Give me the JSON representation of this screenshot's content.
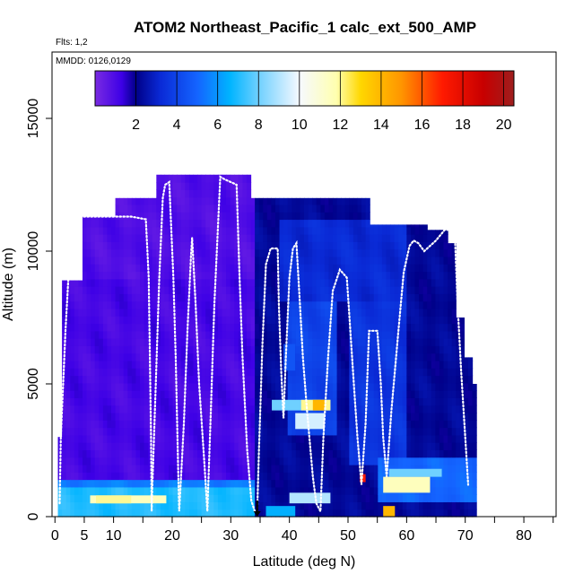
{
  "chart_data": {
    "type": "heatmap",
    "title": "ATOM2 Northeast_Pacific_1 calc_ext_500_AMP",
    "flights_label": "Flts: 1,2",
    "dates_label": "MMDD: 0126,0129",
    "xlabel": "Latitude (deg N)",
    "ylabel": "Altitude (m)",
    "xlim": [
      -0.5,
      85.5
    ],
    "ylim": [
      0,
      17500
    ],
    "x_ticks": [
      0,
      5,
      10,
      20,
      30,
      40,
      50,
      60,
      70,
      80
    ],
    "x_tick_labels": [
      "0",
      "5",
      "10",
      "20",
      "30",
      "40",
      "50",
      "60",
      "70",
      "80"
    ],
    "x_minor_ticks": [
      15,
      25,
      35,
      45,
      55,
      65,
      75,
      85
    ],
    "y_ticks": [
      0,
      5000,
      10000,
      15000
    ],
    "y_tick_labels": [
      "0",
      "5000",
      "10000",
      "15000"
    ],
    "colorbar": {
      "range": [
        0,
        20.5
      ],
      "ticks": [
        2,
        4,
        6,
        8,
        10,
        12,
        14,
        16,
        18,
        20
      ],
      "tick_labels": [
        "2",
        "4",
        "6",
        "8",
        "10",
        "12",
        "14",
        "16",
        "18",
        "20"
      ],
      "stops": [
        {
          "v": 0,
          "color": "#7a2be2"
        },
        {
          "v": 1.3,
          "color": "#3d00e6"
        },
        {
          "v": 2,
          "color": "#000088"
        },
        {
          "v": 3.2,
          "color": "#0a2ad6"
        },
        {
          "v": 5,
          "color": "#1464ff"
        },
        {
          "v": 6.6,
          "color": "#00b4ff"
        },
        {
          "v": 8,
          "color": "#6fd0ff"
        },
        {
          "v": 10,
          "color": "#f6f9ff"
        },
        {
          "v": 11.8,
          "color": "#ffffb0"
        },
        {
          "v": 13,
          "color": "#ffd700"
        },
        {
          "v": 15,
          "color": "#ff9500"
        },
        {
          "v": 17,
          "color": "#ff1a00"
        },
        {
          "v": 19,
          "color": "#c80000"
        },
        {
          "v": 20.5,
          "color": "#9e1e1e"
        }
      ]
    },
    "column_ranges": [
      {
        "lat": [
          0.5,
          1.5
        ],
        "alt": [
          0,
          3000
        ]
      },
      {
        "lat": [
          1.5,
          4.5
        ],
        "alt": [
          0,
          8900
        ]
      },
      {
        "lat": [
          4.5,
          10
        ],
        "alt": [
          0,
          11300
        ]
      },
      {
        "lat": [
          10,
          17.5
        ],
        "alt": [
          0,
          12000
        ]
      },
      {
        "lat": [
          17.5,
          28.5
        ],
        "alt": [
          0,
          12900
        ]
      },
      {
        "lat": [
          28.5,
          33.5
        ],
        "alt": [
          0,
          12900
        ]
      },
      {
        "lat": [
          33.5,
          54
        ],
        "alt": [
          0,
          12000
        ]
      },
      {
        "lat": [
          54,
          63.5
        ],
        "alt": [
          0,
          11000
        ]
      },
      {
        "lat": [
          63.5,
          67
        ],
        "alt": [
          0,
          10800
        ]
      },
      {
        "lat": [
          67,
          68.5
        ],
        "alt": [
          0,
          10300
        ]
      },
      {
        "lat": [
          68.5,
          70
        ],
        "alt": [
          0,
          7500
        ]
      },
      {
        "lat": [
          70,
          71
        ],
        "alt": [
          0,
          6000
        ]
      },
      {
        "lat": [
          71,
          71.7
        ],
        "alt": [
          0,
          5000
        ]
      }
    ],
    "fields": [
      {
        "lat": [
          34,
          71.7
        ],
        "alt": [
          0,
          12000
        ],
        "value": 2.2
      },
      {
        "lat": [
          38,
          60
        ],
        "alt": [
          8000,
          11200
        ],
        "value": 3.2
      },
      {
        "lat": [
          40,
          48
        ],
        "alt": [
          3000,
          8000
        ],
        "value": 4
      },
      {
        "lat": [
          50,
          60
        ],
        "alt": [
          2000,
          8000
        ],
        "value": 3.5
      },
      {
        "lat": [
          55,
          71.7
        ],
        "alt": [
          500,
          2200
        ],
        "value": 5
      },
      {
        "lat": [
          0.5,
          34
        ],
        "alt": [
          0,
          12900
        ],
        "value": 0.9
      },
      {
        "lat": [
          0.5,
          34
        ],
        "alt": [
          1500,
          9000
        ],
        "value": 1.1
      },
      {
        "lat": [
          0.5,
          34
        ],
        "alt": [
          0,
          1000
        ],
        "value": 7
      },
      {
        "lat": [
          0.5,
          34
        ],
        "alt": [
          1000,
          1500
        ],
        "value": 5.5
      }
    ],
    "hotspots": [
      {
        "lat": [
          6,
          19
        ],
        "alt": [
          500,
          800
        ],
        "value": 11.5
      },
      {
        "lat": [
          7,
          13
        ],
        "alt": [
          500,
          800
        ],
        "value": 12
      },
      {
        "lat": [
          36,
          41
        ],
        "alt": [
          0,
          400
        ],
        "value": 6.5
      },
      {
        "lat": [
          40,
          47
        ],
        "alt": [
          500,
          900
        ],
        "value": 9
      },
      {
        "lat": [
          41,
          46
        ],
        "alt": [
          3300,
          3900
        ],
        "value": 9.5
      },
      {
        "lat": [
          37,
          47
        ],
        "alt": [
          4000,
          4400
        ],
        "value": 8
      },
      {
        "lat": [
          42,
          47
        ],
        "alt": [
          4000,
          4400
        ],
        "value": 12
      },
      {
        "lat": [
          44,
          46
        ],
        "alt": [
          4000,
          4400
        ],
        "value": 14
      },
      {
        "lat": [
          39,
          41
        ],
        "alt": [
          5500,
          6500
        ],
        "value": 4.5
      },
      {
        "lat": [
          56,
          64
        ],
        "alt": [
          900,
          1500
        ],
        "value": 11.5
      },
      {
        "lat": [
          57,
          66
        ],
        "alt": [
          1500,
          1800
        ],
        "value": 8
      },
      {
        "lat": [
          56,
          58
        ],
        "alt": [
          0,
          400
        ],
        "value": 14
      },
      {
        "lat": [
          52,
          53
        ],
        "alt": [
          1300,
          1600
        ],
        "value": 17
      }
    ],
    "flight_track": [
      [
        0.8,
        500
      ],
      [
        1,
        3000
      ],
      [
        1.8,
        7000
      ],
      [
        2.5,
        9800
      ],
      [
        2.7,
        11200
      ],
      [
        4,
        11300
      ],
      [
        5,
        11300
      ],
      [
        6.5,
        11300
      ],
      [
        10,
        11300
      ],
      [
        13,
        11300
      ],
      [
        15.5,
        11200
      ],
      [
        16,
        9000
      ],
      [
        16.2,
        6000
      ],
      [
        16.4,
        3000
      ],
      [
        16.5,
        200
      ],
      [
        16.6,
        1000
      ],
      [
        17.2,
        5000
      ],
      [
        17.8,
        9000
      ],
      [
        18.4,
        12000
      ],
      [
        18.8,
        12500
      ],
      [
        19.5,
        12600
      ],
      [
        20.2,
        9000
      ],
      [
        20.6,
        6000
      ],
      [
        21,
        2000
      ],
      [
        21.2,
        200
      ],
      [
        22,
        3500
      ],
      [
        22.6,
        7000
      ],
      [
        23.2,
        9800
      ],
      [
        23.4,
        10500
      ],
      [
        24,
        8000
      ],
      [
        24.6,
        5000
      ],
      [
        25.5,
        2000
      ],
      [
        26,
        200
      ],
      [
        26.6,
        4000
      ],
      [
        27.2,
        8000
      ],
      [
        28.2,
        12800
      ],
      [
        29,
        12700
      ],
      [
        30,
        12600
      ],
      [
        31,
        12500
      ],
      [
        31.5,
        9000
      ],
      [
        32,
        6000
      ],
      [
        32.8,
        2500
      ],
      [
        33.5,
        600
      ],
      [
        34.1,
        200
      ],
      [
        34.5,
        100
      ],
      [
        34.8,
        2500
      ],
      [
        35.4,
        6500
      ],
      [
        36,
        9500
      ],
      [
        36.8,
        10100
      ],
      [
        38,
        10100
      ],
      [
        38.2,
        8000
      ],
      [
        38.6,
        5500
      ],
      [
        39,
        3700
      ],
      [
        39.4,
        6000
      ],
      [
        40,
        9000
      ],
      [
        40.6,
        10100
      ],
      [
        41.2,
        10300
      ],
      [
        41.8,
        8000
      ],
      [
        42.3,
        6000
      ],
      [
        43,
        4000
      ],
      [
        43.6,
        2500
      ],
      [
        44,
        1500
      ],
      [
        44.6,
        500
      ],
      [
        45.3,
        200
      ],
      [
        45.8,
        3000
      ],
      [
        46.6,
        6000
      ],
      [
        47.4,
        8500
      ],
      [
        48.6,
        9300
      ],
      [
        49.8,
        9000
      ],
      [
        50.4,
        7000
      ],
      [
        51,
        5000
      ],
      [
        51.6,
        3000
      ],
      [
        52.3,
        1200
      ],
      [
        53,
        3500
      ],
      [
        53.6,
        7000
      ],
      [
        55,
        7000
      ],
      [
        55.6,
        5000
      ],
      [
        56,
        3000
      ],
      [
        56.6,
        1500
      ],
      [
        57.4,
        4000
      ],
      [
        58.6,
        7000
      ],
      [
        59.5,
        9200
      ],
      [
        60.5,
        10200
      ],
      [
        61.2,
        10400
      ],
      [
        62,
        10300
      ],
      [
        63,
        10000
      ],
      [
        64,
        10200
      ],
      [
        65,
        10400
      ],
      [
        66.5,
        10800
      ],
      [
        68.2,
        10800
      ],
      [
        68.7,
        8000
      ],
      [
        69.3,
        5500
      ],
      [
        70,
        3000
      ],
      [
        70.5,
        1200
      ]
    ],
    "down_arrow_lat": 34.5
  }
}
